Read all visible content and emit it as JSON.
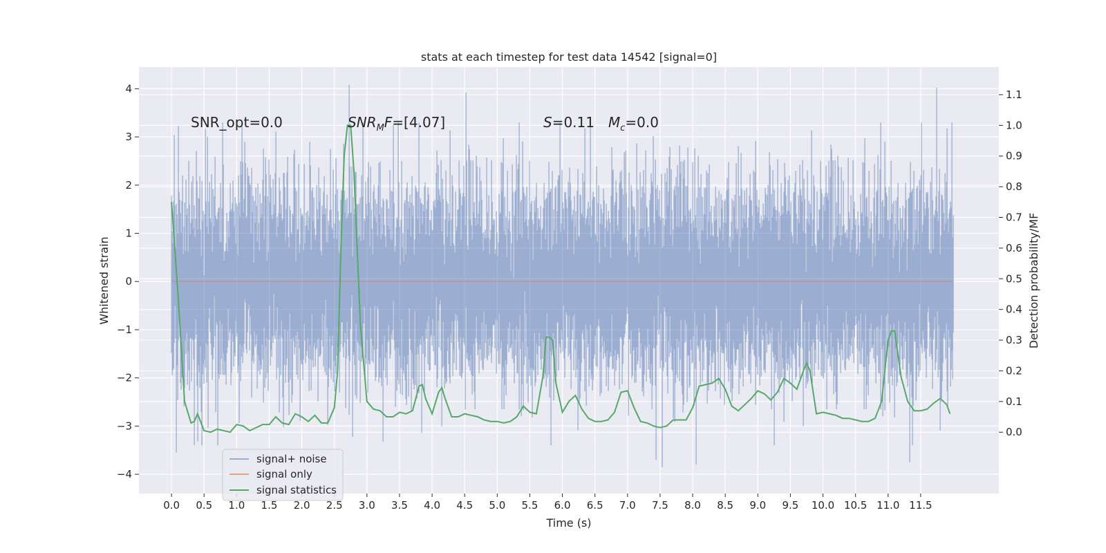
{
  "chart_data": {
    "type": "line",
    "title": "stats at each timestep for test data 14542 [signal=0]",
    "xlabel": "Time (s)",
    "ylabel_left": "Whitened strain",
    "ylabel_right": "Detection probability/MF",
    "xlim": [
      -0.5,
      12.7
    ],
    "ylim_left": [
      -4.4,
      4.45
    ],
    "ylim_right": [
      -0.2,
      1.19
    ],
    "x_ticks": [
      0.0,
      0.5,
      1.0,
      1.5,
      2.0,
      2.5,
      3.0,
      3.5,
      4.0,
      4.5,
      5.0,
      5.5,
      6.0,
      6.5,
      7.0,
      7.5,
      8.0,
      8.5,
      9.0,
      9.5,
      10.0,
      10.5,
      11.0,
      11.5
    ],
    "x_tick_labels": [
      "0.0",
      "0.5",
      "1.0",
      "1.5",
      "2.0",
      "2.5",
      "3.0",
      "3.5",
      "4.0",
      "4.5",
      "5.0",
      "5.5",
      "6.0",
      "6.5",
      "7.0",
      "7.5",
      "8.0",
      "8.5",
      "9.0",
      "9.5",
      "10.0",
      "10.5",
      "11.0",
      "11.5"
    ],
    "y_left_ticks": [
      -4,
      -3,
      -2,
      -1,
      0,
      1,
      2,
      3,
      4
    ],
    "y_left_tick_labels": [
      "−4",
      "−3",
      "−2",
      "−1",
      "0",
      "1",
      "2",
      "3",
      "4"
    ],
    "y_right_ticks": [
      0.0,
      0.1,
      0.2,
      0.3,
      0.4,
      0.5,
      0.6,
      0.7,
      0.8,
      0.9,
      1.0,
      1.1
    ],
    "y_right_tick_labels": [
      "0.0",
      "0.1",
      "0.2",
      "0.3",
      "0.4",
      "0.5",
      "0.6",
      "0.7",
      "0.8",
      "0.9",
      "1.0",
      "1.1"
    ],
    "grid": true,
    "legend_position": "lower-left",
    "annotations": {
      "snr_opt": "SNR_opt=0.0",
      "snr_mf_main": "SNR",
      "snr_mf_sub": "M",
      "snr_mf_main2": "F",
      "snr_mf_value": "=[4.07]",
      "s_symbol": "S",
      "s_value": "=0.11",
      "mc_symbol": "M",
      "mc_sub": "c",
      "mc_value": "=0.0"
    },
    "series": [
      {
        "name": "signal+ noise",
        "axis": "left",
        "color": "#4c72b0",
        "description_only": false,
        "time_range": [
          0.0,
          12.0
        ],
        "noise_sigma": 1.0,
        "visible_extremes": [
          {
            "x": 0.07,
            "y": -3.55
          },
          {
            "x": 0.47,
            "y": -3.4
          },
          {
            "x": 2.73,
            "y": 4.08
          },
          {
            "x": 4.52,
            "y": 3.92
          },
          {
            "x": 7.44,
            "y": -3.7
          },
          {
            "x": 7.53,
            "y": -3.85
          },
          {
            "x": 8.05,
            "y": -3.8
          },
          {
            "x": 11.33,
            "y": -3.75
          },
          {
            "x": 11.74,
            "y": 4.02
          }
        ]
      },
      {
        "name": "signal only",
        "axis": "left",
        "color": "#dd8452",
        "x": [
          0.0,
          12.0
        ],
        "y": [
          0.0,
          0.0
        ]
      },
      {
        "name": "signal statistics",
        "axis": "right",
        "color": "#55a868",
        "x": [
          0.0,
          0.1,
          0.2,
          0.3,
          0.35,
          0.4,
          0.5,
          0.6,
          0.7,
          0.8,
          0.9,
          1.0,
          1.1,
          1.2,
          1.3,
          1.4,
          1.5,
          1.6,
          1.7,
          1.8,
          1.9,
          2.0,
          2.1,
          2.2,
          2.3,
          2.4,
          2.5,
          2.55,
          2.6,
          2.65,
          2.7,
          2.75,
          2.8,
          2.9,
          3.0,
          3.1,
          3.2,
          3.3,
          3.4,
          3.5,
          3.6,
          3.7,
          3.8,
          3.85,
          3.9,
          4.0,
          4.1,
          4.15,
          4.2,
          4.3,
          4.4,
          4.5,
          4.6,
          4.7,
          4.8,
          4.9,
          5.0,
          5.1,
          5.2,
          5.3,
          5.4,
          5.5,
          5.6,
          5.7,
          5.75,
          5.8,
          5.85,
          5.9,
          6.0,
          6.1,
          6.2,
          6.3,
          6.4,
          6.5,
          6.6,
          6.7,
          6.8,
          6.9,
          7.0,
          7.1,
          7.2,
          7.3,
          7.4,
          7.5,
          7.6,
          7.7,
          7.8,
          7.9,
          8.0,
          8.1,
          8.2,
          8.3,
          8.4,
          8.5,
          8.6,
          8.7,
          8.8,
          8.9,
          9.0,
          9.1,
          9.2,
          9.3,
          9.4,
          9.5,
          9.6,
          9.7,
          9.75,
          9.8,
          9.9,
          10.0,
          10.1,
          10.2,
          10.3,
          10.4,
          10.5,
          10.6,
          10.7,
          10.8,
          10.9,
          11.0,
          11.05,
          11.1,
          11.2,
          11.3,
          11.4,
          11.5,
          11.6,
          11.7,
          11.8,
          11.9,
          11.95
        ],
        "y": [
          0.75,
          0.45,
          0.1,
          0.03,
          0.035,
          0.06,
          0.005,
          0.0,
          0.01,
          0.005,
          0.0,
          0.025,
          0.02,
          0.005,
          0.015,
          0.025,
          0.025,
          0.05,
          0.03,
          0.025,
          0.06,
          0.05,
          0.035,
          0.055,
          0.03,
          0.03,
          0.08,
          0.2,
          0.6,
          0.9,
          1.0,
          1.0,
          0.85,
          0.35,
          0.1,
          0.075,
          0.07,
          0.05,
          0.05,
          0.065,
          0.06,
          0.07,
          0.15,
          0.155,
          0.11,
          0.06,
          0.13,
          0.145,
          0.11,
          0.05,
          0.05,
          0.06,
          0.055,
          0.05,
          0.04,
          0.035,
          0.035,
          0.03,
          0.035,
          0.05,
          0.085,
          0.065,
          0.06,
          0.18,
          0.31,
          0.31,
          0.3,
          0.16,
          0.065,
          0.1,
          0.12,
          0.075,
          0.045,
          0.035,
          0.035,
          0.04,
          0.065,
          0.13,
          0.135,
          0.08,
          0.035,
          0.03,
          0.02,
          0.015,
          0.02,
          0.04,
          0.04,
          0.04,
          0.08,
          0.15,
          0.155,
          0.16,
          0.175,
          0.14,
          0.085,
          0.07,
          0.09,
          0.11,
          0.135,
          0.125,
          0.105,
          0.13,
          0.175,
          0.16,
          0.14,
          0.2,
          0.225,
          0.2,
          0.06,
          0.065,
          0.06,
          0.055,
          0.045,
          0.045,
          0.04,
          0.035,
          0.035,
          0.045,
          0.1,
          0.3,
          0.33,
          0.33,
          0.18,
          0.1,
          0.07,
          0.07,
          0.075,
          0.095,
          0.11,
          0.09,
          0.06
        ]
      }
    ]
  }
}
